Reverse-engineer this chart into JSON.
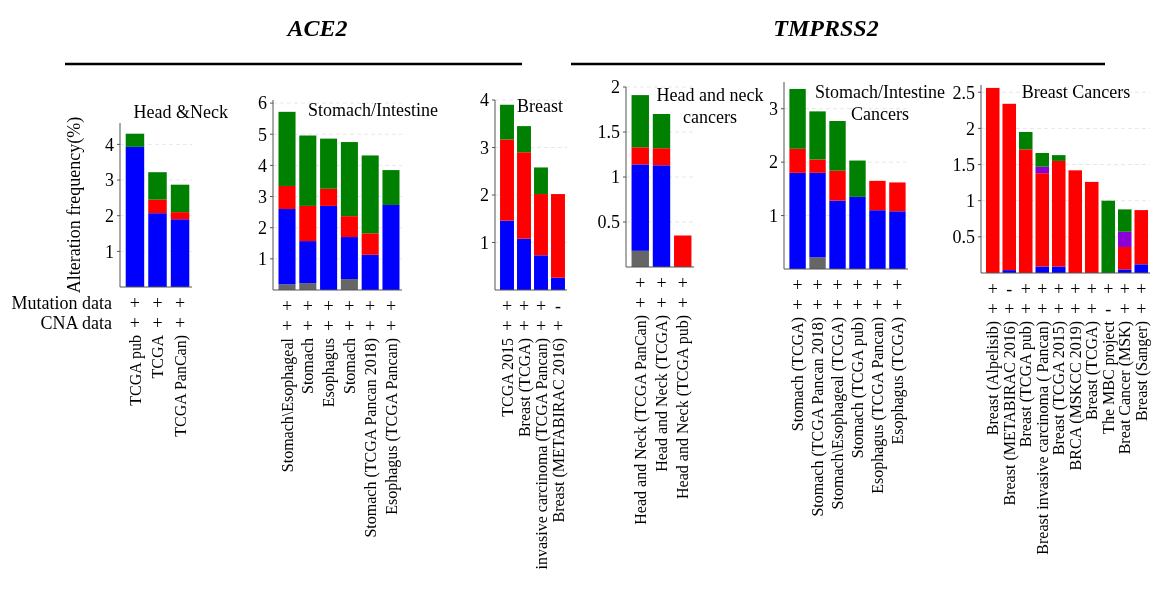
{
  "chart_data": [
    {
      "type": "bar",
      "stacked": true,
      "title": "Head &Neck",
      "ylabel": "Alteration frequency(%)",
      "categories": [
        "TCGA pub",
        "TCGA",
        "TCGA PanCan)"
      ],
      "ylim": [
        0,
        4.6
      ],
      "yticks": [
        1,
        2,
        3,
        4
      ],
      "grid": "y",
      "series": [
        {
          "color": "#0000ff",
          "values": [
            3.93,
            2.07,
            1.9
          ]
        },
        {
          "color": "#ff0000",
          "values": [
            null,
            0.38,
            0.2
          ]
        },
        {
          "color": "#008000",
          "values": [
            0.37,
            0.77,
            0.77
          ]
        }
      ],
      "annotations": [
        "Mutation data",
        "CNA data",
        "+",
        "+",
        "+",
        "+",
        "+",
        "+"
      ]
    },
    {
      "type": "bar",
      "stacked": true,
      "subtitle": "ACE2",
      "title": "Stomach/Intestine",
      "categories": [
        "Stomach\\Esophageal",
        "Stomach",
        "Esophagus",
        "Stomach",
        "Stomach (TCGA Pancan 2018)",
        "Esophagus (TCGA Pancan)"
      ],
      "ylim": [
        0,
        6.1
      ],
      "yticks": [
        1,
        2,
        3,
        4,
        5,
        6
      ],
      "grid": "y",
      "series": [
        {
          "color": "#666666",
          "values": [
            0.18,
            0.22,
            null,
            0.35,
            null,
            null
          ]
        },
        {
          "color": "#0000ff",
          "values": [
            2.42,
            1.35,
            2.7,
            1.35,
            1.13,
            2.73
          ]
        },
        {
          "color": "#ff0000",
          "values": [
            0.74,
            1.13,
            0.55,
            0.67,
            0.69,
            null
          ]
        },
        {
          "color": "#008000",
          "values": [
            2.38,
            2.26,
            1.61,
            2.38,
            2.5,
            1.12
          ]
        }
      ],
      "annotations": [
        "+",
        "+",
        "+",
        "+",
        "+",
        "+",
        "+",
        "+",
        "+",
        "+",
        "+",
        "+"
      ]
    },
    {
      "type": "bar",
      "stacked": true,
      "title": "Breast",
      "categories": [
        "TCGA 2015",
        "Breast (TCGA)",
        "invasive carcinoma (TCGA Pancan)",
        "Breast (METABIRAC 2016)"
      ],
      "ylim": [
        0,
        4
      ],
      "yticks": [
        1,
        2,
        3,
        4
      ],
      "grid": "y",
      "series": [
        {
          "color": "#0000ff",
          "values": [
            1.46,
            1.08,
            0.73,
            0.26
          ]
        },
        {
          "color": "#ff0000",
          "values": [
            1.71,
            1.82,
            1.29,
            1.76
          ]
        },
        {
          "color": "#008000",
          "values": [
            0.73,
            0.55,
            0.56,
            null
          ]
        }
      ],
      "annotations": [
        "+",
        "+",
        "+",
        "-",
        "+",
        "+",
        "+",
        "+"
      ]
    },
    {
      "type": "bar",
      "stacked": true,
      "title": "Head and neck cancers",
      "categories": [
        "Head and Neck (TCGA PanCan)",
        "Head and Neck (TCGA)",
        "Head and Neck (TCGA pub)"
      ],
      "ylim": [
        0,
        2
      ],
      "yticks": [
        0.5,
        1,
        1.5,
        2
      ],
      "grid": "y",
      "series": [
        {
          "color": "#666666",
          "values": [
            0.18,
            null,
            null
          ]
        },
        {
          "color": "#0000ff",
          "values": [
            0.96,
            1.13,
            null
          ]
        },
        {
          "color": "#ff0000",
          "values": [
            0.19,
            0.19,
            0.35
          ]
        },
        {
          "color": "#008000",
          "values": [
            0.58,
            0.38,
            null
          ]
        }
      ],
      "annotations": [
        "+",
        "+",
        "+",
        "+",
        "+",
        "+"
      ]
    },
    {
      "type": "bar",
      "stacked": true,
      "subtitle": "TMPRSS2",
      "title": "Stomach/Intestine Cancers",
      "categories": [
        "Stomach (TCGA)",
        "Stomach (TCGA Pancan 2018)",
        "Stomach\\Esophageal (TCGA)",
        "Stomach (TCGA pub)",
        "Esophagus (TCGA Pancan)",
        "Esophagus (TCGA)"
      ],
      "ylim": [
        0,
        3.5
      ],
      "yticks": [
        1,
        2,
        3
      ],
      "grid": "y",
      "series": [
        {
          "color": "#666666",
          "values": [
            null,
            0.22,
            null,
            null,
            null,
            null
          ]
        },
        {
          "color": "#0000ff",
          "values": [
            1.8,
            1.58,
            1.28,
            1.35,
            1.1,
            1.08
          ]
        },
        {
          "color": "#ff0000",
          "values": [
            0.45,
            0.25,
            0.56,
            null,
            0.55,
            0.54
          ]
        },
        {
          "color": "#008000",
          "values": [
            1.12,
            0.9,
            0.93,
            0.68,
            null,
            null
          ]
        }
      ],
      "annotations": [
        "+",
        "+",
        "+",
        "+",
        "+",
        "+",
        "+",
        "+",
        "+",
        "+",
        "+",
        "+"
      ]
    },
    {
      "type": "bar",
      "stacked": true,
      "title": "Breast Cancers",
      "categories": [
        "Breast (Alpelisib)",
        "Breast (METABIRAC 2016)",
        "Breast (TCGA pub)",
        "Breast invasive carcinoma ( Pancan)",
        "Breast (TCGA 2015)",
        "BRCA (MSKCC 2019)",
        "Breast (TCGA)",
        "The MBC project",
        "Breat Cancer (MSK)",
        "Breast (Sanger)"
      ],
      "ylim": [
        0,
        2.6
      ],
      "yticks": [
        0.5,
        1,
        1.5,
        2,
        2.5
      ],
      "grid": "y",
      "series": [
        {
          "color": "#0000ff",
          "values": [
            null,
            0.04,
            null,
            0.09,
            0.09,
            null,
            null,
            null,
            0.05,
            0.12
          ]
        },
        {
          "color": "#ff0000",
          "values": [
            2.56,
            2.3,
            1.71,
            1.29,
            1.46,
            1.42,
            1.26,
            null,
            0.31,
            0.75
          ]
        },
        {
          "color": "#8b00d4",
          "values": [
            null,
            null,
            null,
            0.09,
            null,
            null,
            null,
            null,
            0.21,
            null
          ]
        },
        {
          "color": "#008000",
          "values": [
            null,
            null,
            0.24,
            0.19,
            0.08,
            null,
            null,
            1.0,
            0.31,
            null
          ]
        }
      ],
      "annotations": [
        "+",
        "-",
        "+",
        "+",
        "+",
        "+",
        "+",
        "+",
        "+",
        "+",
        "+",
        "+",
        "+",
        "+",
        "+",
        "+",
        "+",
        "-",
        "+",
        "+"
      ]
    }
  ]
}
